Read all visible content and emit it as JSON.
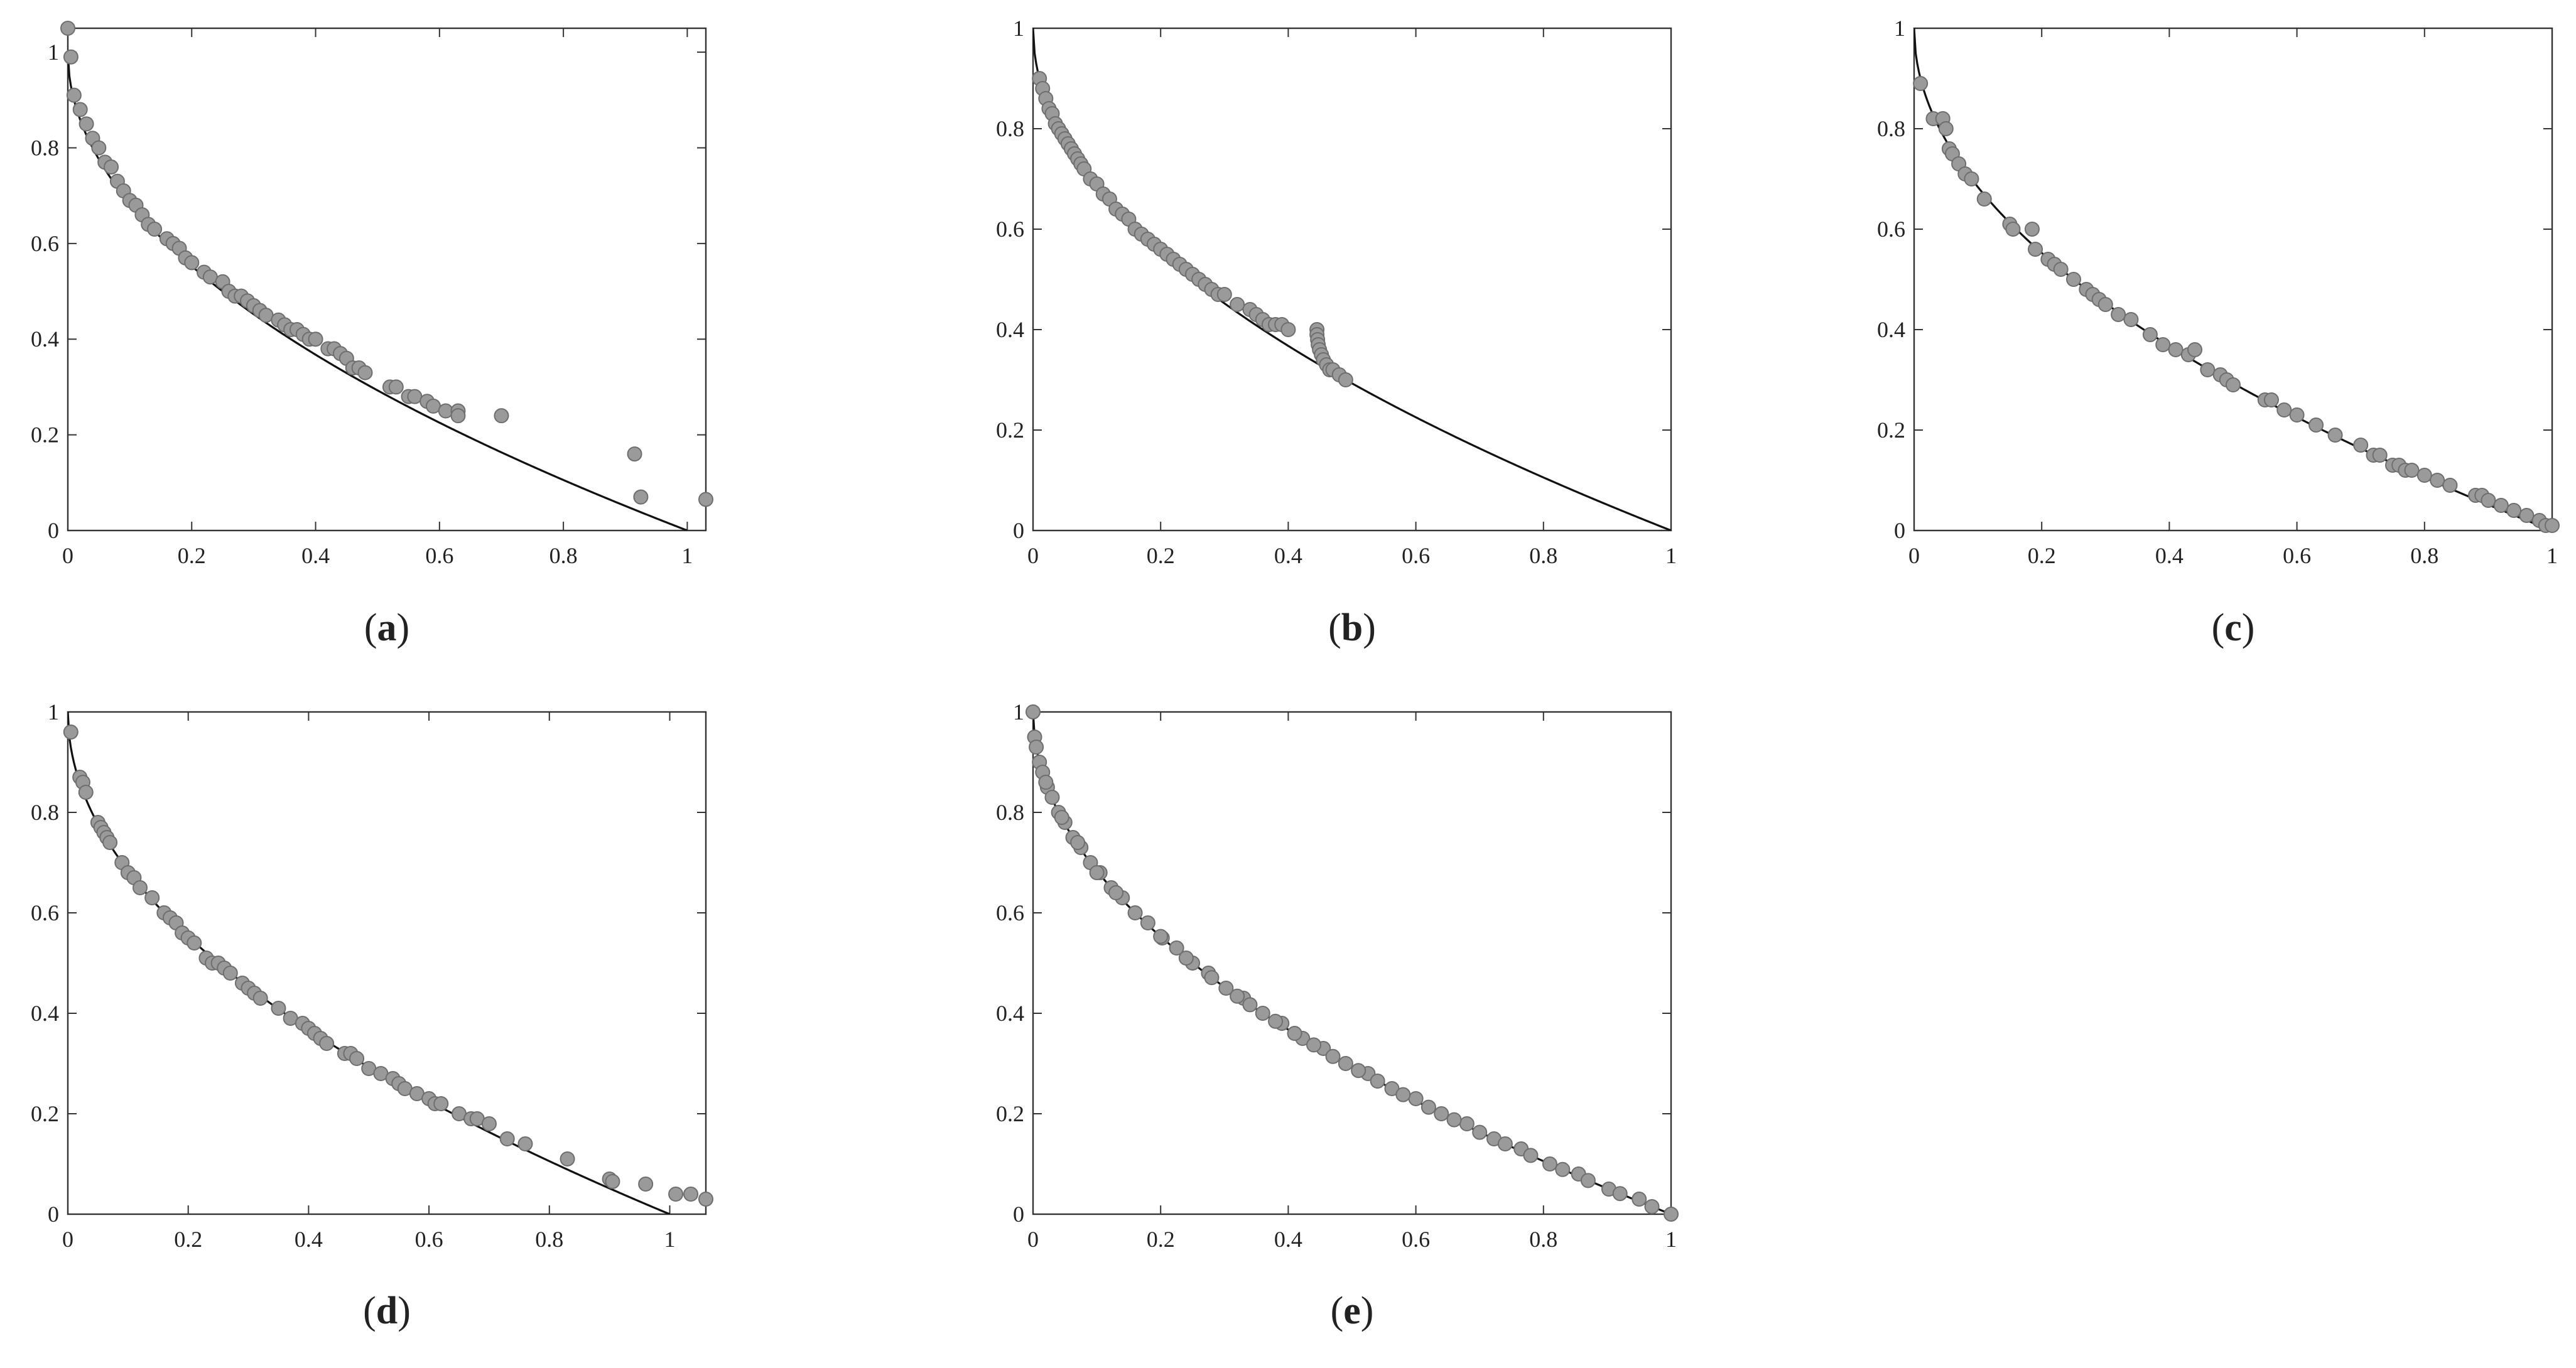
{
  "style": {
    "point_fill": "#9a9a9a",
    "point_stroke": "#6e6e6e",
    "curve_color": "#111111",
    "axis_color": "#333333"
  },
  "chart_data": [
    {
      "id": "a",
      "caption": "a",
      "type": "scatter",
      "reference_curve": "y = 1 - sqrt(x)",
      "xlim": [
        0,
        1.03
      ],
      "ylim": [
        0,
        1.05
      ],
      "xticks": [
        0,
        0.2,
        0.4,
        0.6,
        0.8,
        1
      ],
      "xtick_labels": [
        "0",
        "0.2",
        "0.4",
        "0.6",
        "0.8",
        "1"
      ],
      "yticks": [
        0,
        0.2,
        0.4,
        0.6,
        0.8,
        1
      ],
      "ytick_labels": [
        "0",
        "0.2",
        "0.4",
        "0.6",
        "0.8",
        "1"
      ],
      "points": [
        [
          0,
          1.05
        ],
        [
          0.005,
          0.99
        ],
        [
          0.01,
          0.91
        ],
        [
          0.02,
          0.88
        ],
        [
          0.03,
          0.85
        ],
        [
          0.04,
          0.82
        ],
        [
          0.05,
          0.8
        ],
        [
          0.06,
          0.77
        ],
        [
          0.07,
          0.76
        ],
        [
          0.08,
          0.73
        ],
        [
          0.09,
          0.71
        ],
        [
          0.1,
          0.69
        ],
        [
          0.11,
          0.68
        ],
        [
          0.12,
          0.66
        ],
        [
          0.13,
          0.64
        ],
        [
          0.14,
          0.63
        ],
        [
          0.16,
          0.61
        ],
        [
          0.17,
          0.6
        ],
        [
          0.18,
          0.59
        ],
        [
          0.19,
          0.57
        ],
        [
          0.2,
          0.56
        ],
        [
          0.22,
          0.54
        ],
        [
          0.23,
          0.53
        ],
        [
          0.25,
          0.52
        ],
        [
          0.26,
          0.5
        ],
        [
          0.27,
          0.49
        ],
        [
          0.28,
          0.49
        ],
        [
          0.29,
          0.48
        ],
        [
          0.3,
          0.47
        ],
        [
          0.31,
          0.46
        ],
        [
          0.32,
          0.45
        ],
        [
          0.34,
          0.44
        ],
        [
          0.35,
          0.43
        ],
        [
          0.36,
          0.42
        ],
        [
          0.37,
          0.42
        ],
        [
          0.38,
          0.41
        ],
        [
          0.39,
          0.4
        ],
        [
          0.4,
          0.4
        ],
        [
          0.42,
          0.38
        ],
        [
          0.43,
          0.38
        ],
        [
          0.44,
          0.37
        ],
        [
          0.45,
          0.36
        ],
        [
          0.46,
          0.34
        ],
        [
          0.47,
          0.34
        ],
        [
          0.48,
          0.33
        ],
        [
          0.52,
          0.3
        ],
        [
          0.53,
          0.3
        ],
        [
          0.55,
          0.28
        ],
        [
          0.56,
          0.28
        ],
        [
          0.58,
          0.27
        ],
        [
          0.59,
          0.26
        ],
        [
          0.61,
          0.25
        ],
        [
          0.63,
          0.25
        ],
        [
          0.63,
          0.24
        ],
        [
          0.7,
          0.24
        ],
        [
          0.915,
          0.16
        ],
        [
          0.925,
          0.07
        ],
        [
          1.03,
          0.065
        ]
      ]
    },
    {
      "id": "b",
      "caption": "b",
      "type": "scatter",
      "reference_curve": "y = 1 - sqrt(x)",
      "xlim": [
        0,
        1
      ],
      "ylim": [
        0,
        1
      ],
      "xticks": [
        0,
        0.2,
        0.4,
        0.6,
        0.8,
        1
      ],
      "xtick_labels": [
        "0",
        "0.2",
        "0.4",
        "0.6",
        "0.8",
        "1"
      ],
      "yticks": [
        0,
        0.2,
        0.4,
        0.6,
        0.8,
        1
      ],
      "ytick_labels": [
        "0",
        "0.2",
        "0.4",
        "0.6",
        "0.8",
        "1"
      ],
      "points": [
        [
          0.01,
          0.9
        ],
        [
          0.015,
          0.88
        ],
        [
          0.02,
          0.86
        ],
        [
          0.025,
          0.84
        ],
        [
          0.03,
          0.83
        ],
        [
          0.035,
          0.81
        ],
        [
          0.04,
          0.8
        ],
        [
          0.045,
          0.79
        ],
        [
          0.05,
          0.78
        ],
        [
          0.055,
          0.77
        ],
        [
          0.06,
          0.76
        ],
        [
          0.065,
          0.75
        ],
        [
          0.07,
          0.74
        ],
        [
          0.075,
          0.73
        ],
        [
          0.08,
          0.72
        ],
        [
          0.09,
          0.7
        ],
        [
          0.1,
          0.69
        ],
        [
          0.11,
          0.67
        ],
        [
          0.12,
          0.66
        ],
        [
          0.13,
          0.64
        ],
        [
          0.14,
          0.63
        ],
        [
          0.15,
          0.62
        ],
        [
          0.16,
          0.6
        ],
        [
          0.17,
          0.59
        ],
        [
          0.18,
          0.58
        ],
        [
          0.19,
          0.57
        ],
        [
          0.2,
          0.56
        ],
        [
          0.21,
          0.55
        ],
        [
          0.22,
          0.54
        ],
        [
          0.23,
          0.53
        ],
        [
          0.24,
          0.52
        ],
        [
          0.25,
          0.51
        ],
        [
          0.26,
          0.5
        ],
        [
          0.27,
          0.49
        ],
        [
          0.28,
          0.48
        ],
        [
          0.29,
          0.47
        ],
        [
          0.3,
          0.47
        ],
        [
          0.32,
          0.45
        ],
        [
          0.34,
          0.44
        ],
        [
          0.35,
          0.43
        ],
        [
          0.36,
          0.42
        ],
        [
          0.37,
          0.41
        ],
        [
          0.38,
          0.41
        ],
        [
          0.39,
          0.41
        ],
        [
          0.4,
          0.4
        ],
        [
          0.445,
          0.4
        ],
        [
          0.445,
          0.39
        ],
        [
          0.446,
          0.38
        ],
        [
          0.447,
          0.37
        ],
        [
          0.449,
          0.36
        ],
        [
          0.452,
          0.35
        ],
        [
          0.455,
          0.34
        ],
        [
          0.46,
          0.33
        ],
        [
          0.465,
          0.32
        ],
        [
          0.47,
          0.32
        ],
        [
          0.48,
          0.31
        ],
        [
          0.49,
          0.3
        ]
      ]
    },
    {
      "id": "c",
      "caption": "c",
      "type": "scatter",
      "reference_curve": "y = 1 - sqrt(x)",
      "xlim": [
        0,
        1
      ],
      "ylim": [
        0,
        1
      ],
      "xticks": [
        0,
        0.2,
        0.4,
        0.6,
        0.8,
        1
      ],
      "xtick_labels": [
        "0",
        "0.2",
        "0.4",
        "0.6",
        "0.8",
        "1"
      ],
      "yticks": [
        0,
        0.2,
        0.4,
        0.6,
        0.8,
        1
      ],
      "ytick_labels": [
        "0",
        "0.2",
        "0.4",
        "0.6",
        "0.8",
        "1"
      ],
      "points": [
        [
          0.01,
          0.89
        ],
        [
          0.03,
          0.82
        ],
        [
          0.045,
          0.82
        ],
        [
          0.05,
          0.8
        ],
        [
          0.055,
          0.76
        ],
        [
          0.06,
          0.75
        ],
        [
          0.07,
          0.73
        ],
        [
          0.08,
          0.71
        ],
        [
          0.09,
          0.7
        ],
        [
          0.11,
          0.66
        ],
        [
          0.15,
          0.61
        ],
        [
          0.155,
          0.6
        ],
        [
          0.185,
          0.6
        ],
        [
          0.19,
          0.56
        ],
        [
          0.21,
          0.54
        ],
        [
          0.22,
          0.53
        ],
        [
          0.23,
          0.52
        ],
        [
          0.25,
          0.5
        ],
        [
          0.27,
          0.48
        ],
        [
          0.28,
          0.47
        ],
        [
          0.29,
          0.46
        ],
        [
          0.3,
          0.45
        ],
        [
          0.32,
          0.43
        ],
        [
          0.34,
          0.42
        ],
        [
          0.37,
          0.39
        ],
        [
          0.39,
          0.37
        ],
        [
          0.41,
          0.36
        ],
        [
          0.43,
          0.35
        ],
        [
          0.44,
          0.36
        ],
        [
          0.46,
          0.32
        ],
        [
          0.48,
          0.31
        ],
        [
          0.49,
          0.3
        ],
        [
          0.5,
          0.29
        ],
        [
          0.55,
          0.26
        ],
        [
          0.56,
          0.26
        ],
        [
          0.58,
          0.24
        ],
        [
          0.6,
          0.23
        ],
        [
          0.63,
          0.21
        ],
        [
          0.66,
          0.19
        ],
        [
          0.7,
          0.17
        ],
        [
          0.72,
          0.15
        ],
        [
          0.73,
          0.15
        ],
        [
          0.75,
          0.13
        ],
        [
          0.76,
          0.13
        ],
        [
          0.77,
          0.12
        ],
        [
          0.78,
          0.12
        ],
        [
          0.8,
          0.11
        ],
        [
          0.82,
          0.1
        ],
        [
          0.84,
          0.09
        ],
        [
          0.88,
          0.07
        ],
        [
          0.89,
          0.07
        ],
        [
          0.9,
          0.06
        ],
        [
          0.92,
          0.05
        ],
        [
          0.94,
          0.04
        ],
        [
          0.96,
          0.03
        ],
        [
          0.98,
          0.02
        ],
        [
          0.99,
          0.01
        ],
        [
          1,
          0.01
        ]
      ]
    },
    {
      "id": "d",
      "caption": "d",
      "type": "scatter",
      "reference_curve": "y = 1 - sqrt(x)",
      "xlim": [
        0,
        1.06
      ],
      "ylim": [
        0,
        1
      ],
      "xticks": [
        0,
        0.2,
        0.4,
        0.6,
        0.8,
        1
      ],
      "xtick_labels": [
        "0",
        "0.2",
        "0.4",
        "0.6",
        "0.8",
        "1"
      ],
      "yticks": [
        0,
        0.2,
        0.4,
        0.6,
        0.8,
        1
      ],
      "ytick_labels": [
        "0",
        "0.2",
        "0.4",
        "0.6",
        "0.8",
        "1"
      ],
      "points": [
        [
          0.005,
          0.96
        ],
        [
          0.02,
          0.87
        ],
        [
          0.025,
          0.86
        ],
        [
          0.03,
          0.84
        ],
        [
          0.05,
          0.78
        ],
        [
          0.055,
          0.77
        ],
        [
          0.06,
          0.76
        ],
        [
          0.065,
          0.75
        ],
        [
          0.07,
          0.74
        ],
        [
          0.09,
          0.7
        ],
        [
          0.1,
          0.68
        ],
        [
          0.11,
          0.67
        ],
        [
          0.12,
          0.65
        ],
        [
          0.14,
          0.63
        ],
        [
          0.16,
          0.6
        ],
        [
          0.17,
          0.59
        ],
        [
          0.18,
          0.58
        ],
        [
          0.19,
          0.56
        ],
        [
          0.2,
          0.55
        ],
        [
          0.21,
          0.54
        ],
        [
          0.23,
          0.51
        ],
        [
          0.24,
          0.5
        ],
        [
          0.25,
          0.5
        ],
        [
          0.26,
          0.49
        ],
        [
          0.27,
          0.48
        ],
        [
          0.29,
          0.46
        ],
        [
          0.3,
          0.45
        ],
        [
          0.31,
          0.44
        ],
        [
          0.32,
          0.43
        ],
        [
          0.35,
          0.41
        ],
        [
          0.37,
          0.39
        ],
        [
          0.39,
          0.38
        ],
        [
          0.4,
          0.37
        ],
        [
          0.41,
          0.36
        ],
        [
          0.42,
          0.35
        ],
        [
          0.43,
          0.34
        ],
        [
          0.46,
          0.32
        ],
        [
          0.47,
          0.32
        ],
        [
          0.48,
          0.31
        ],
        [
          0.5,
          0.29
        ],
        [
          0.52,
          0.28
        ],
        [
          0.54,
          0.27
        ],
        [
          0.55,
          0.26
        ],
        [
          0.56,
          0.25
        ],
        [
          0.58,
          0.24
        ],
        [
          0.6,
          0.23
        ],
        [
          0.61,
          0.22
        ],
        [
          0.62,
          0.22
        ],
        [
          0.65,
          0.2
        ],
        [
          0.67,
          0.19
        ],
        [
          0.68,
          0.19
        ],
        [
          0.7,
          0.18
        ],
        [
          0.73,
          0.15
        ],
        [
          0.76,
          0.14
        ],
        [
          0.83,
          0.11
        ],
        [
          0.9,
          0.07
        ],
        [
          0.905,
          0.065
        ],
        [
          0.96,
          0.06
        ],
        [
          1.01,
          0.04
        ],
        [
          1.035,
          0.04
        ],
        [
          1.06,
          0.03
        ]
      ]
    },
    {
      "id": "e",
      "caption": "e",
      "type": "scatter",
      "reference_curve": "y = 1 - sqrt(x)",
      "xlim": [
        0,
        1
      ],
      "ylim": [
        0,
        1
      ],
      "xticks": [
        0,
        0.2,
        0.4,
        0.6,
        0.8,
        1
      ],
      "xtick_labels": [
        "0",
        "0.2",
        "0.4",
        "0.6",
        "0.8",
        "1"
      ],
      "yticks": [
        0,
        0.2,
        0.4,
        0.6,
        0.8,
        1
      ],
      "ytick_labels": [
        "0",
        "0.2",
        "0.4",
        "0.6",
        "0.8",
        "1"
      ],
      "points": [
        [
          0,
          1
        ],
        [
          0.0025,
          0.95
        ],
        [
          0.01,
          0.9
        ],
        [
          0.0225,
          0.85
        ],
        [
          0.04,
          0.8
        ],
        [
          0.0625,
          0.75
        ],
        [
          0.09,
          0.7
        ],
        [
          0.1225,
          0.65
        ],
        [
          0.16,
          0.6
        ],
        [
          0.2025,
          0.55
        ],
        [
          0.25,
          0.5
        ],
        [
          0.3025,
          0.45
        ],
        [
          0.36,
          0.4
        ],
        [
          0.4225,
          0.35
        ],
        [
          0.49,
          0.3
        ],
        [
          0.5625,
          0.25
        ],
        [
          0.64,
          0.2
        ],
        [
          0.7225,
          0.15
        ],
        [
          0.81,
          0.1
        ],
        [
          0.9025,
          0.05
        ],
        [
          1,
          0
        ],
        [
          0.005,
          0.93
        ],
        [
          0.015,
          0.88
        ],
        [
          0.03,
          0.83
        ],
        [
          0.05,
          0.78
        ],
        [
          0.075,
          0.73
        ],
        [
          0.105,
          0.68
        ],
        [
          0.14,
          0.63
        ],
        [
          0.18,
          0.58
        ],
        [
          0.225,
          0.53
        ],
        [
          0.275,
          0.48
        ],
        [
          0.33,
          0.43
        ],
        [
          0.39,
          0.38
        ],
        [
          0.455,
          0.33
        ],
        [
          0.525,
          0.28
        ],
        [
          0.6,
          0.23
        ],
        [
          0.68,
          0.18
        ],
        [
          0.765,
          0.13
        ],
        [
          0.855,
          0.08
        ],
        [
          0.95,
          0.03
        ],
        [
          0.02,
          0.86
        ],
        [
          0.045,
          0.79
        ],
        [
          0.07,
          0.74
        ],
        [
          0.1,
          0.68
        ],
        [
          0.13,
          0.64
        ],
        [
          0.2,
          0.553
        ],
        [
          0.24,
          0.51
        ],
        [
          0.28,
          0.471
        ],
        [
          0.32,
          0.434
        ],
        [
          0.34,
          0.417
        ],
        [
          0.38,
          0.384
        ],
        [
          0.41,
          0.36
        ],
        [
          0.44,
          0.337
        ],
        [
          0.47,
          0.314
        ],
        [
          0.51,
          0.286
        ],
        [
          0.54,
          0.265
        ],
        [
          0.58,
          0.238
        ],
        [
          0.62,
          0.213
        ],
        [
          0.66,
          0.188
        ],
        [
          0.7,
          0.163
        ],
        [
          0.74,
          0.14
        ],
        [
          0.78,
          0.117
        ],
        [
          0.83,
          0.089
        ],
        [
          0.87,
          0.067
        ],
        [
          0.92,
          0.041
        ],
        [
          0.97,
          0.015
        ]
      ]
    }
  ]
}
